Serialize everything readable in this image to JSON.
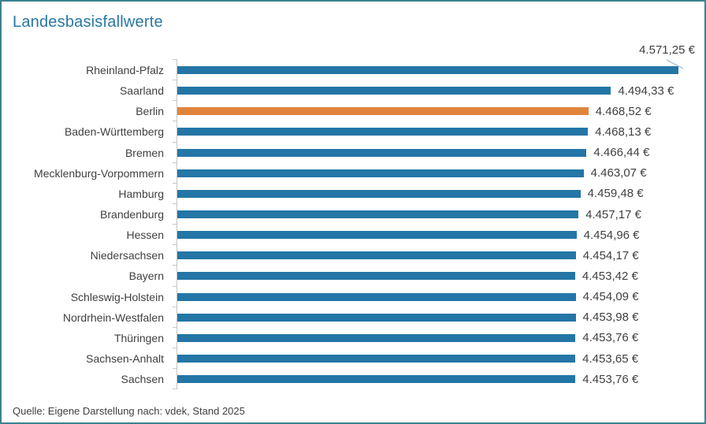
{
  "colors": {
    "bar_blue": "#2376a6",
    "bar_highlight_orange": "#e0843c",
    "title_text": "#2878a3",
    "body_text": "#404040",
    "axis_line": "#c6c6c6",
    "frame_border": "#3d828f",
    "leader_line": "#a7c1d3"
  },
  "source": {
    "text": "Quelle: Eigene Darstellung nach: vdek, Stand 2025"
  },
  "chart_data": {
    "type": "bar",
    "orientation": "horizontal",
    "title": "Landesbasisfallwerte",
    "unit": "€",
    "axis_min": 4000,
    "axis_max": 4590,
    "grid": false,
    "legend": "none",
    "highlight_index": 2,
    "highlighted_category": "Berlin",
    "first_label_as_callout": true,
    "categories": [
      "Rheinland-Pfalz",
      "Saarland",
      "Berlin",
      "Baden-Württemberg",
      "Bremen",
      "Mecklenburg-Vorpommern",
      "Hamburg",
      "Brandenburg",
      "Hessen",
      "Niedersachsen",
      "Bayern",
      "Schleswig-Holstein",
      "Nordrhein-Westfalen",
      "Thüringen",
      "Sachsen-Anhalt",
      "Sachsen"
    ],
    "values": [
      4571.25,
      4494.33,
      4468.52,
      4468.13,
      4466.44,
      4463.07,
      4459.48,
      4457.17,
      4454.96,
      4454.17,
      4453.42,
      4454.09,
      4453.98,
      4453.76,
      4453.65,
      4453.76
    ],
    "display_values": [
      "4.571,25 €",
      "4.494,33 €",
      "4.468,52 €",
      "4.468,13 €",
      "4.466,44 €",
      "4.463,07 €",
      "4.459,48 €",
      "4.457,17 €",
      "4.454,96 €",
      "4.454,17 €",
      "4.453,42 €",
      "4.454,09 €",
      "4.453,98 €",
      "4.453,76 €",
      "4.453,65 €",
      "4.453,76 €"
    ]
  }
}
